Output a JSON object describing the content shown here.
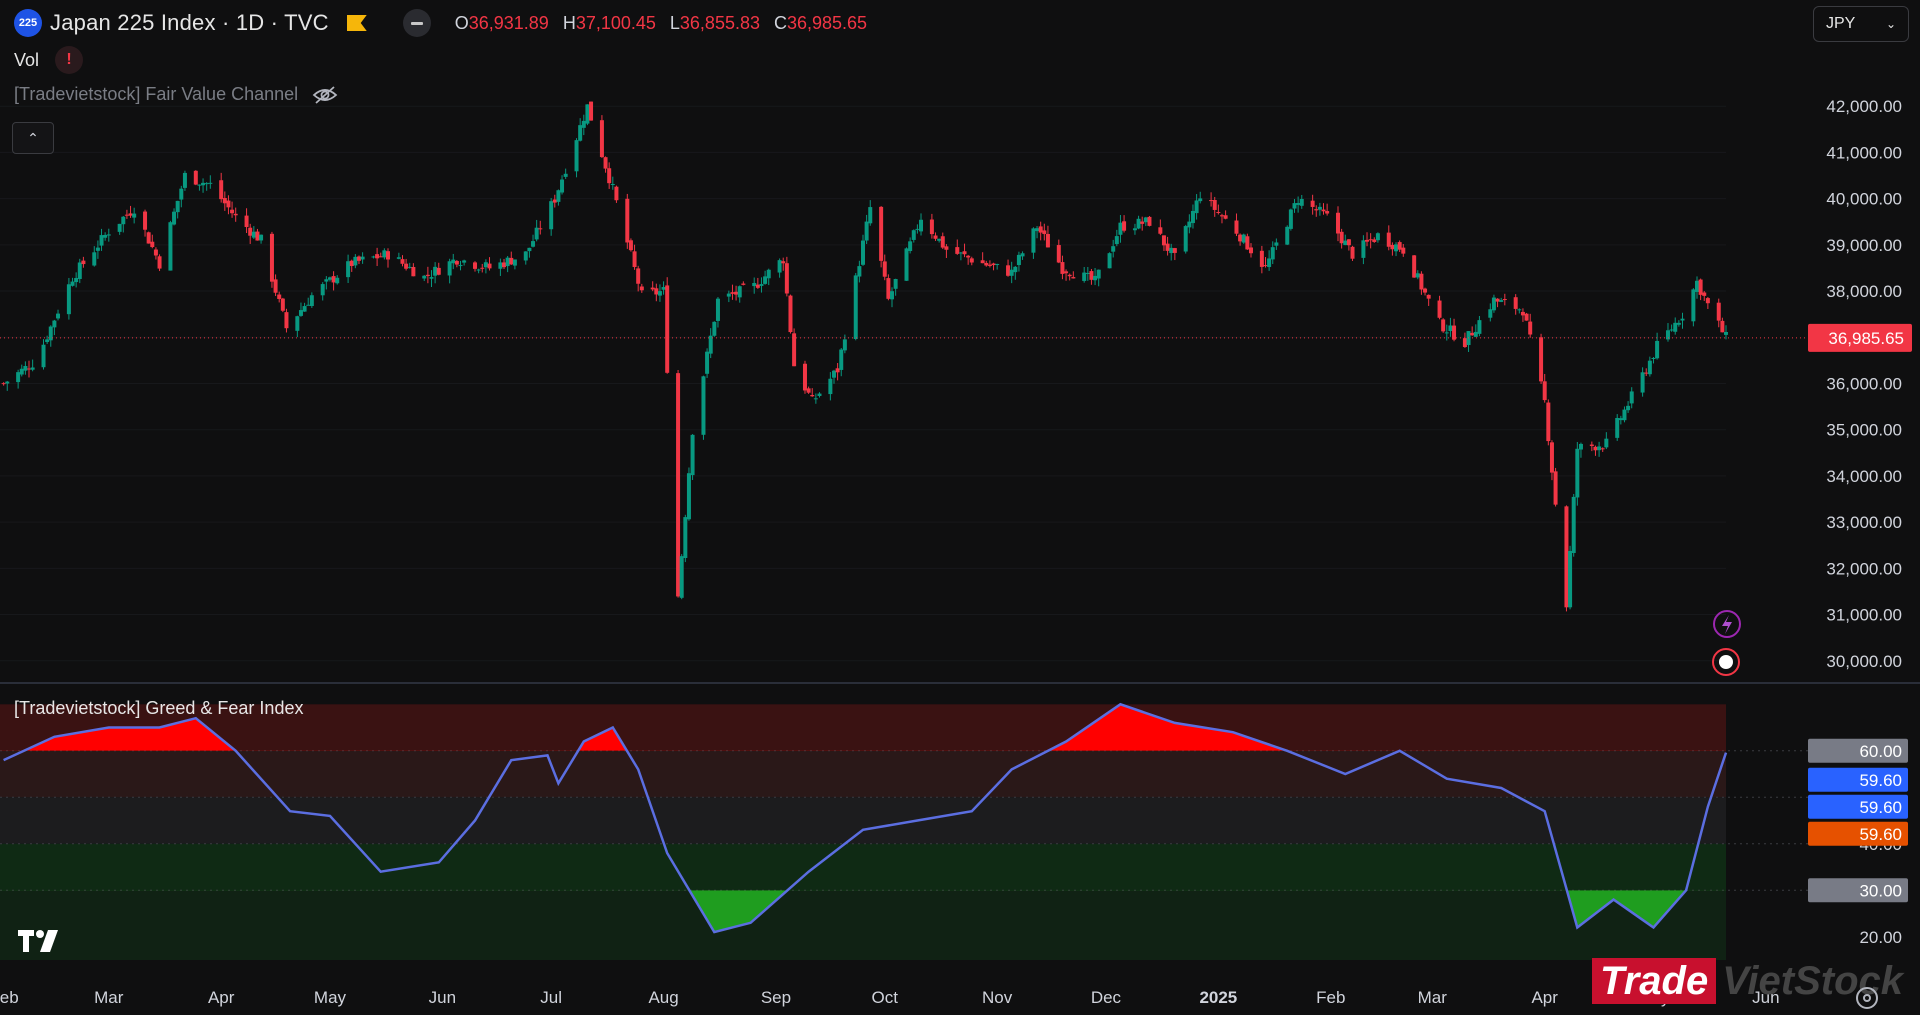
{
  "header": {
    "symbol_badge": "225",
    "title": "Japan 225 Index · 1D · TVC",
    "ohlc": [
      {
        "key": "O",
        "value": "36,931.89"
      },
      {
        "key": "H",
        "value": "37,100.45"
      },
      {
        "key": "L",
        "value": "36,855.83"
      },
      {
        "key": "C",
        "value": "36,985.65"
      }
    ]
  },
  "vol_label": "Vol",
  "vol_warning": "!",
  "indicator_hidden": "[Tradevietstock] Fair Value Channel",
  "indicator_pane": "[Tradevietstock] Greed & Fear Index",
  "currency": "JPY",
  "brand": {
    "part1": "Trade",
    "part2": "VietStock"
  },
  "colors": {
    "up": "#089981",
    "down": "#f23645",
    "line": "#5b6ee1",
    "greed": "#ff0000",
    "fear": "#1f9d1f"
  },
  "chart_data": [
    {
      "type": "candlestick",
      "title": "Japan 225 Index · 1D · TVC",
      "x_tick_labels": [
        "Feb",
        "Mar",
        "Apr",
        "May",
        "Jun",
        "Jul",
        "Aug",
        "Sep",
        "Oct",
        "Nov",
        "Dec",
        "2025",
        "Feb",
        "Mar",
        "Apr",
        "May",
        "Jun"
      ],
      "y_tick_labels": [
        "42,000.00",
        "41,000.00",
        "40,000.00",
        "39,000.00",
        "38,000.00",
        "37,000.00",
        "36,000.00",
        "35,000.00",
        "34,000.00",
        "33,000.00",
        "32,000.00",
        "31,000.00",
        "30,000.00"
      ],
      "y_ticks": [
        42000,
        41000,
        40000,
        39000,
        38000,
        37000,
        36000,
        35000,
        34000,
        33000,
        32000,
        31000,
        30000
      ],
      "ylim": [
        29800,
        43000
      ],
      "last_price": 36985.65,
      "last_price_label": "36,985.65",
      "price_path": [
        {
          "date": "2024-02-01",
          "close": 36000
        },
        {
          "date": "2024-02-10",
          "close": 36500
        },
        {
          "date": "2024-02-20",
          "close": 38300
        },
        {
          "date": "2024-03-01",
          "close": 39300
        },
        {
          "date": "2024-03-08",
          "close": 39800
        },
        {
          "date": "2024-03-15",
          "close": 38600
        },
        {
          "date": "2024-03-22",
          "close": 40500
        },
        {
          "date": "2024-03-29",
          "close": 40300
        },
        {
          "date": "2024-04-05",
          "close": 39600
        },
        {
          "date": "2024-04-12",
          "close": 39100
        },
        {
          "date": "2024-04-19",
          "close": 37200
        },
        {
          "date": "2024-04-26",
          "close": 37900
        },
        {
          "date": "2024-05-07",
          "close": 38600
        },
        {
          "date": "2024-05-17",
          "close": 38800
        },
        {
          "date": "2024-05-27",
          "close": 38300
        },
        {
          "date": "2024-06-05",
          "close": 38700
        },
        {
          "date": "2024-06-14",
          "close": 38500
        },
        {
          "date": "2024-06-24",
          "close": 38800
        },
        {
          "date": "2024-07-02",
          "close": 40000
        },
        {
          "date": "2024-07-11",
          "close": 42000
        },
        {
          "date": "2024-07-18",
          "close": 40200
        },
        {
          "date": "2024-07-26",
          "close": 37900
        },
        {
          "date": "2024-08-01",
          "close": 38000
        },
        {
          "date": "2024-08-05",
          "close": 31400
        },
        {
          "date": "2024-08-09",
          "close": 35000
        },
        {
          "date": "2024-08-16",
          "close": 37800
        },
        {
          "date": "2024-08-26",
          "close": 38100
        },
        {
          "date": "2024-09-03",
          "close": 38700
        },
        {
          "date": "2024-09-06",
          "close": 36400
        },
        {
          "date": "2024-09-11",
          "close": 35600
        },
        {
          "date": "2024-09-18",
          "close": 36300
        },
        {
          "date": "2024-09-27",
          "close": 39800
        },
        {
          "date": "2024-10-02",
          "close": 37800
        },
        {
          "date": "2024-10-11",
          "close": 39600
        },
        {
          "date": "2024-10-18",
          "close": 38900
        },
        {
          "date": "2024-10-28",
          "close": 38600
        },
        {
          "date": "2024-11-05",
          "close": 38400
        },
        {
          "date": "2024-11-12",
          "close": 39400
        },
        {
          "date": "2024-11-19",
          "close": 38500
        },
        {
          "date": "2024-11-28",
          "close": 38200
        },
        {
          "date": "2024-12-05",
          "close": 39400
        },
        {
          "date": "2024-12-13",
          "close": 39500
        },
        {
          "date": "2024-12-20",
          "close": 38700
        },
        {
          "date": "2024-12-27",
          "close": 40100
        },
        {
          "date": "2025-01-06",
          "close": 39300
        },
        {
          "date": "2025-01-14",
          "close": 38500
        },
        {
          "date": "2025-01-23",
          "close": 40000
        },
        {
          "date": "2025-01-31",
          "close": 39600
        },
        {
          "date": "2025-02-07",
          "close": 38800
        },
        {
          "date": "2025-02-14",
          "close": 39200
        },
        {
          "date": "2025-02-21",
          "close": 38900
        },
        {
          "date": "2025-03-03",
          "close": 37300
        },
        {
          "date": "2025-03-10",
          "close": 36900
        },
        {
          "date": "2025-03-18",
          "close": 37800
        },
        {
          "date": "2025-03-26",
          "close": 37600
        },
        {
          "date": "2025-04-01",
          "close": 35600
        },
        {
          "date": "2025-04-07",
          "close": 31200
        },
        {
          "date": "2025-04-10",
          "close": 34600
        },
        {
          "date": "2025-04-18",
          "close": 34700
        },
        {
          "date": "2025-04-25",
          "close": 35700
        },
        {
          "date": "2025-05-02",
          "close": 36800
        },
        {
          "date": "2025-05-09",
          "close": 37500
        },
        {
          "date": "2025-05-13",
          "close": 38200
        },
        {
          "date": "2025-05-16",
          "close": 37700
        },
        {
          "date": "2025-05-21",
          "close": 36985.65
        }
      ]
    },
    {
      "type": "area",
      "title": "[Tradevietstock] Greed & Fear Index",
      "y_tick_labels": [
        "60.00",
        "40.00",
        "30.00",
        "20.00"
      ],
      "y_ticks": [
        60,
        40,
        30,
        20
      ],
      "ylim": [
        15,
        72
      ],
      "zones": [
        {
          "from": 60,
          "to": 70,
          "color": "#3a1212"
        },
        {
          "from": 50,
          "to": 60,
          "color": "#2a1818"
        },
        {
          "from": 40,
          "to": 50,
          "color": "#1c1c1e"
        },
        {
          "from": 30,
          "to": 40,
          "color": "#0f2a14"
        },
        {
          "from": 15,
          "to": 30,
          "color": "#102214"
        }
      ],
      "greed_threshold": 60,
      "fear_threshold": 30,
      "last_value_labels": [
        "59.60",
        "59.60",
        "59.60"
      ],
      "last_value_label_colors": [
        "#2962ff",
        "#2962ff",
        "#e65100"
      ],
      "series": [
        {
          "values": [
            {
              "date": "2024-02-01",
              "v": 58
            },
            {
              "date": "2024-02-15",
              "v": 63
            },
            {
              "date": "2024-03-01",
              "v": 65
            },
            {
              "date": "2024-03-15",
              "v": 65
            },
            {
              "date": "2024-03-25",
              "v": 67
            },
            {
              "date": "2024-04-05",
              "v": 60
            },
            {
              "date": "2024-04-20",
              "v": 47
            },
            {
              "date": "2024-05-01",
              "v": 46
            },
            {
              "date": "2024-05-15",
              "v": 34
            },
            {
              "date": "2024-05-31",
              "v": 36
            },
            {
              "date": "2024-06-10",
              "v": 45
            },
            {
              "date": "2024-06-20",
              "v": 58
            },
            {
              "date": "2024-06-30",
              "v": 59
            },
            {
              "date": "2024-07-03",
              "v": 53
            },
            {
              "date": "2024-07-10",
              "v": 62
            },
            {
              "date": "2024-07-18",
              "v": 65
            },
            {
              "date": "2024-07-25",
              "v": 56
            },
            {
              "date": "2024-08-02",
              "v": 38
            },
            {
              "date": "2024-08-15",
              "v": 21
            },
            {
              "date": "2024-08-25",
              "v": 23
            },
            {
              "date": "2024-09-10",
              "v": 34
            },
            {
              "date": "2024-09-25",
              "v": 43
            },
            {
              "date": "2024-10-10",
              "v": 45
            },
            {
              "date": "2024-10-25",
              "v": 47
            },
            {
              "date": "2024-11-05",
              "v": 56
            },
            {
              "date": "2024-11-20",
              "v": 62
            },
            {
              "date": "2024-12-05",
              "v": 70
            },
            {
              "date": "2024-12-20",
              "v": 66
            },
            {
              "date": "2025-01-05",
              "v": 64
            },
            {
              "date": "2025-01-20",
              "v": 60
            },
            {
              "date": "2025-02-05",
              "v": 55
            },
            {
              "date": "2025-02-20",
              "v": 60
            },
            {
              "date": "2025-03-05",
              "v": 54
            },
            {
              "date": "2025-03-20",
              "v": 52
            },
            {
              "date": "2025-04-01",
              "v": 47
            },
            {
              "date": "2025-04-10",
              "v": 22
            },
            {
              "date": "2025-04-20",
              "v": 28
            },
            {
              "date": "2025-05-01",
              "v": 22
            },
            {
              "date": "2025-05-10",
              "v": 30
            },
            {
              "date": "2025-05-16",
              "v": 48
            },
            {
              "date": "2025-05-21",
              "v": 59.6
            }
          ]
        }
      ]
    }
  ]
}
